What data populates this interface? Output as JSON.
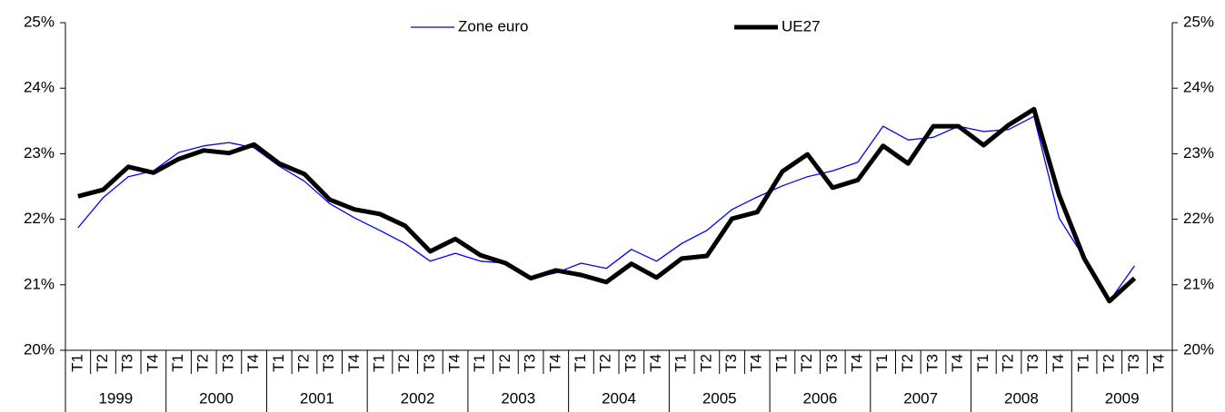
{
  "chart_data": {
    "type": "line",
    "categories": [
      "T1",
      "T2",
      "T3",
      "T4",
      "T1",
      "T2",
      "T3",
      "T4",
      "T1",
      "T2",
      "T3",
      "T4",
      "T1",
      "T2",
      "T3",
      "T4",
      "T1",
      "T2",
      "T3",
      "T4",
      "T1",
      "T2",
      "T3",
      "T4",
      "T1",
      "T2",
      "T3",
      "T4",
      "T1",
      "T2",
      "T3",
      "T4",
      "T1",
      "T2",
      "T3",
      "T4",
      "T1",
      "T2",
      "T3",
      "T4",
      "T1",
      "T2",
      "T3",
      "T4"
    ],
    "year_groups": [
      "1999",
      "2000",
      "2001",
      "2002",
      "2003",
      "2004",
      "2005",
      "2006",
      "2007",
      "2008",
      "2009"
    ],
    "series": [
      {
        "name": "Zone euro",
        "color": "#0000ff",
        "values": [
          21.87,
          22.33,
          22.65,
          22.74,
          23.02,
          23.12,
          23.17,
          23.09,
          22.81,
          22.58,
          22.24,
          22.02,
          21.83,
          21.63,
          21.36,
          21.48,
          21.36,
          21.33,
          21.1,
          21.18,
          21.33,
          21.25,
          21.54,
          21.36,
          21.63,
          21.83,
          22.15,
          22.34,
          22.51,
          22.65,
          22.74,
          22.87,
          23.42,
          23.21,
          23.25,
          23.42,
          23.34,
          23.37,
          23.57,
          22.02,
          21.41,
          20.75,
          21.29,
          null
        ]
      },
      {
        "name": "UE27",
        "color": "#000000",
        "values": [
          22.35,
          22.45,
          22.8,
          22.71,
          22.92,
          23.05,
          23.01,
          23.14,
          22.85,
          22.69,
          22.3,
          22.15,
          22.08,
          21.9,
          21.51,
          21.7,
          21.45,
          21.33,
          21.1,
          21.22,
          21.15,
          21.04,
          21.32,
          21.11,
          21.4,
          21.44,
          22.01,
          22.11,
          22.73,
          22.99,
          22.48,
          22.6,
          23.12,
          22.85,
          23.42,
          23.42,
          23.13,
          23.44,
          23.68,
          22.37,
          21.4,
          20.75,
          21.1,
          null
        ]
      }
    ],
    "ylim": [
      20,
      25
    ],
    "yticks": [
      {
        "value": 20,
        "label": "20%"
      },
      {
        "value": 21,
        "label": "21%"
      },
      {
        "value": 22,
        "label": "22%"
      },
      {
        "value": 23,
        "label": "23%"
      },
      {
        "value": 24,
        "label": "24%"
      },
      {
        "value": 25,
        "label": "25%"
      }
    ],
    "legend": "top"
  }
}
